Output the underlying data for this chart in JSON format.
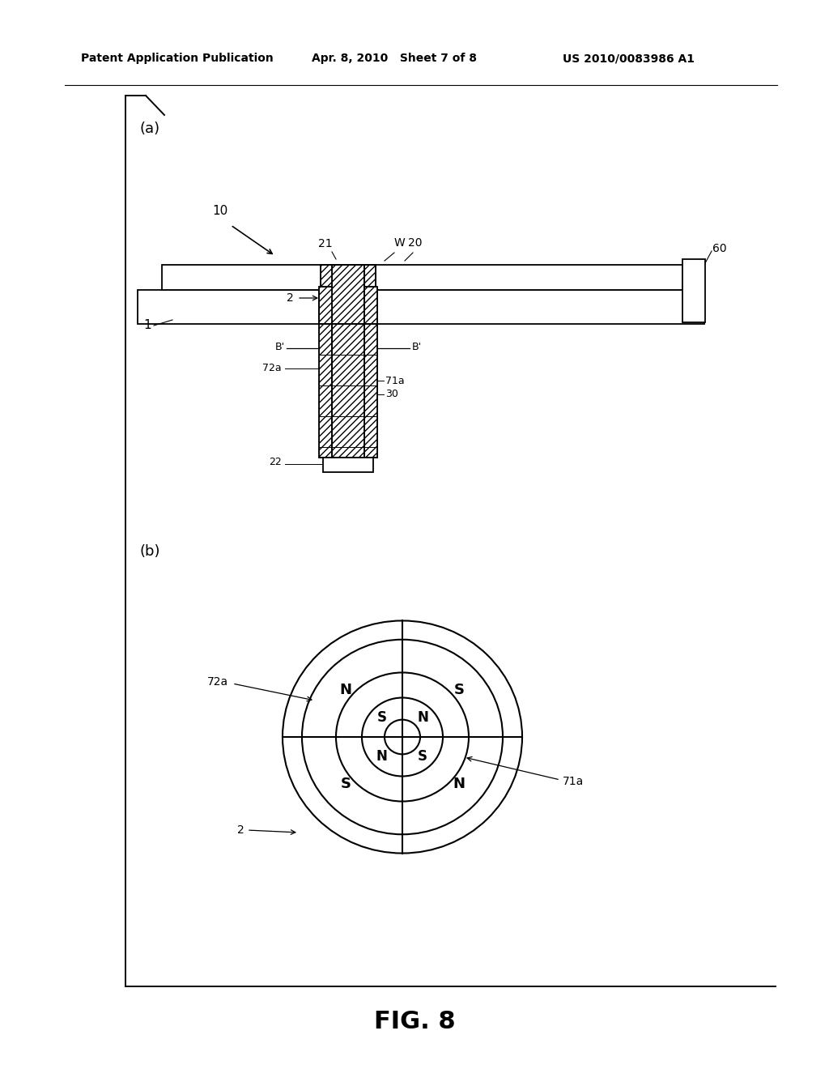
{
  "bg_color": "#ffffff",
  "header_left": "Patent Application Publication",
  "header_mid": "Apr. 8, 2010   Sheet 7 of 8",
  "header_right": "US 2010/0083986 A1",
  "fig_label": "FIG. 8",
  "panel_a_label": "(a)",
  "panel_b_label": "(b)",
  "lc": "#000000",
  "outer_ring_poles_tl_tr_bl_br": [
    "N",
    "S",
    "S",
    "N"
  ],
  "inner_ring_poles_tl_tr_bl_br": [
    "S",
    "N",
    "N",
    "S"
  ]
}
